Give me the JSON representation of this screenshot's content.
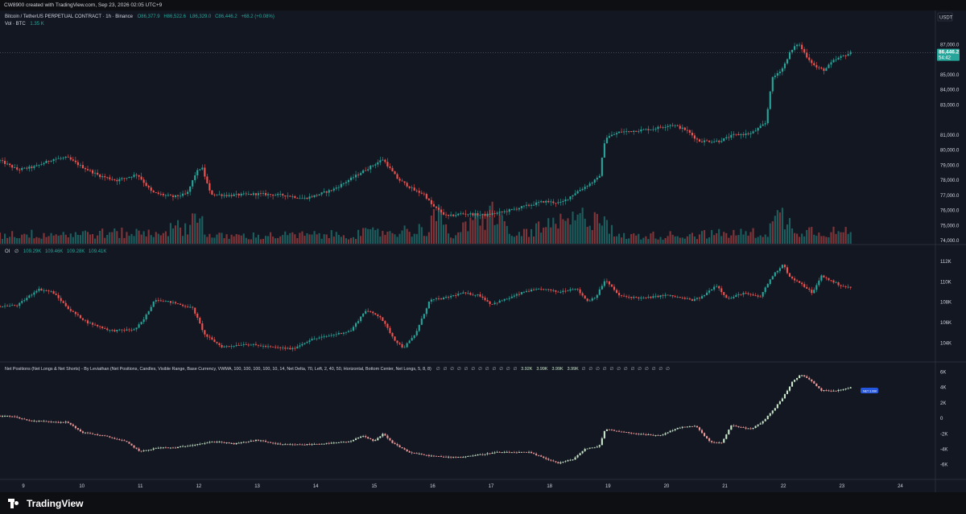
{
  "header": {
    "created": "CW8900 created with TradingView.com, Sep 23, 2026 02:05 UTC+9"
  },
  "legend": {
    "symbol": "Bitcoin / TetherUS PERPETUAL CONTRACT · 1h · Binance",
    "o": "O86,377.9",
    "h": "H86,522.6",
    "l": "L86,329.0",
    "c": "C86,446.2",
    "chg": "+68.2 (+0.08%)",
    "vol_label": "Vol · BTC",
    "vol_value": "1.35 K"
  },
  "oi_legend": {
    "label": "OI",
    "values": [
      "109.29K",
      "109.46K",
      "109.28K",
      "109.41K"
    ]
  },
  "np_legend": {
    "title": "Net Positions (Net Longs & Net Shorts) - By Leviathan (Net Positions, Candles, Visible Range, Base Currency, VWMA, 100, 100, 100, 100, 10, 14, Net Delta, 70, Left, 2, 40, 50, Horizontal, Bottom Center, Net Longs, 5, 8, 8)",
    "values": [
      "3.92K",
      "3.99K",
      "3.99K",
      "3.99K"
    ],
    "null_symbol": "∅"
  },
  "price_axis": {
    "currency": "USDT",
    "ticks": [
      "87,000.0",
      "85,000.0",
      "84,000.0",
      "83,000.0",
      "81,000.0",
      "80,000.0",
      "79,000.0",
      "78,000.0",
      "77,000.0",
      "76,000.0",
      "75,000.0",
      "74,000.0"
    ],
    "last_price": "86,446.2",
    "countdown": "54:42"
  },
  "oi_axis": {
    "ticks": [
      "112K",
      "110K",
      "108K",
      "106K",
      "104K"
    ]
  },
  "np_axis": {
    "ticks": [
      "6K",
      "4K",
      "2K",
      "0",
      "-2K",
      "-4K",
      "-6K"
    ],
    "bubble": "NET 3.99K"
  },
  "time_axis": {
    "labels": [
      "9",
      "10",
      "11",
      "12",
      "13",
      "14",
      "15",
      "16",
      "17",
      "18",
      "19",
      "20",
      "21",
      "22",
      "23",
      "24"
    ]
  },
  "footer": {
    "brand": "TradingView"
  },
  "colors": {
    "up": "#26a69a",
    "down": "#ef5350",
    "np_up": "#c8e6c9",
    "np_down": "#ef9a9a",
    "bg": "#131722",
    "text": "#d1d4dc",
    "badge": "#26a69a"
  },
  "chart_data": {
    "type": "candlestick",
    "timeframe": "1h",
    "price_anchors": [
      [
        8.6,
        79300
      ],
      [
        8.9,
        78700
      ],
      [
        9.2,
        78900
      ],
      [
        9.5,
        79400
      ],
      [
        9.75,
        79500
      ],
      [
        10.0,
        78900
      ],
      [
        10.3,
        78300
      ],
      [
        10.6,
        78000
      ],
      [
        10.95,
        78400
      ],
      [
        11.2,
        77200
      ],
      [
        11.55,
        76900
      ],
      [
        11.8,
        77100
      ],
      [
        11.95,
        78500
      ],
      [
        12.05,
        78900
      ],
      [
        12.2,
        77100
      ],
      [
        12.5,
        77000
      ],
      [
        13.0,
        77100
      ],
      [
        13.5,
        77000
      ],
      [
        13.8,
        76800
      ],
      [
        14.0,
        77000
      ],
      [
        14.3,
        77400
      ],
      [
        14.6,
        78100
      ],
      [
        14.85,
        78700
      ],
      [
        15.15,
        79400
      ],
      [
        15.4,
        78100
      ],
      [
        15.7,
        77300
      ],
      [
        15.85,
        77100
      ],
      [
        16.0,
        76300
      ],
      [
        16.25,
        75600
      ],
      [
        16.5,
        75800
      ],
      [
        16.9,
        75700
      ],
      [
        17.2,
        75900
      ],
      [
        17.6,
        76300
      ],
      [
        17.9,
        76600
      ],
      [
        18.2,
        76500
      ],
      [
        18.45,
        77200
      ],
      [
        18.7,
        77800
      ],
      [
        18.85,
        78200
      ],
      [
        18.95,
        80800
      ],
      [
        19.2,
        81200
      ],
      [
        19.5,
        81300
      ],
      [
        19.75,
        81400
      ],
      [
        20.1,
        81700
      ],
      [
        20.35,
        81300
      ],
      [
        20.55,
        80600
      ],
      [
        20.9,
        80600
      ],
      [
        21.15,
        81000
      ],
      [
        21.45,
        81100
      ],
      [
        21.7,
        81800
      ],
      [
        21.8,
        84700
      ],
      [
        22.0,
        85500
      ],
      [
        22.1,
        86400
      ],
      [
        22.25,
        87100
      ],
      [
        22.4,
        86200
      ],
      [
        22.55,
        85500
      ],
      [
        22.7,
        85300
      ],
      [
        22.85,
        85900
      ],
      [
        23.0,
        86200
      ],
      [
        23.15,
        86446
      ]
    ],
    "oi_anchors": [
      [
        8.6,
        107.6
      ],
      [
        8.9,
        107.7
      ],
      [
        9.25,
        109.3
      ],
      [
        9.5,
        109.0
      ],
      [
        9.8,
        107.2
      ],
      [
        10.1,
        106.0
      ],
      [
        10.5,
        105.2
      ],
      [
        10.9,
        105.3
      ],
      [
        11.05,
        106.2
      ],
      [
        11.25,
        108.3
      ],
      [
        11.6,
        107.9
      ],
      [
        11.9,
        107.4
      ],
      [
        12.1,
        104.8
      ],
      [
        12.4,
        103.6
      ],
      [
        12.8,
        103.9
      ],
      [
        13.2,
        103.6
      ],
      [
        13.6,
        103.4
      ],
      [
        13.9,
        104.3
      ],
      [
        14.3,
        104.8
      ],
      [
        14.6,
        105.2
      ],
      [
        14.85,
        107.2
      ],
      [
        15.1,
        106.6
      ],
      [
        15.35,
        104.3
      ],
      [
        15.5,
        103.5
      ],
      [
        15.7,
        104.8
      ],
      [
        15.95,
        108.2
      ],
      [
        16.2,
        108.4
      ],
      [
        16.5,
        108.9
      ],
      [
        16.8,
        108.7
      ],
      [
        17.0,
        107.8
      ],
      [
        17.3,
        108.4
      ],
      [
        17.6,
        109.1
      ],
      [
        17.9,
        109.3
      ],
      [
        18.15,
        109.0
      ],
      [
        18.45,
        109.4
      ],
      [
        18.65,
        108.1
      ],
      [
        18.8,
        108.6
      ],
      [
        18.95,
        110.2
      ],
      [
        19.2,
        108.6
      ],
      [
        19.6,
        108.4
      ],
      [
        20.0,
        108.7
      ],
      [
        20.45,
        108.2
      ],
      [
        20.6,
        108.5
      ],
      [
        20.85,
        109.7
      ],
      [
        21.05,
        108.3
      ],
      [
        21.3,
        108.9
      ],
      [
        21.6,
        108.5
      ],
      [
        21.8,
        110.5
      ],
      [
        22.0,
        111.8
      ],
      [
        22.1,
        110.5
      ],
      [
        22.35,
        109.6
      ],
      [
        22.5,
        108.9
      ],
      [
        22.65,
        110.6
      ],
      [
        22.85,
        110.0
      ],
      [
        23.0,
        109.6
      ],
      [
        23.15,
        109.41
      ]
    ],
    "np_anchors": [
      [
        8.6,
        0.3
      ],
      [
        8.8,
        0.3
      ],
      [
        9.1,
        -0.3
      ],
      [
        9.4,
        -0.4
      ],
      [
        9.75,
        -0.5
      ],
      [
        10.0,
        -1.8
      ],
      [
        10.4,
        -2.3
      ],
      [
        10.75,
        -3.0
      ],
      [
        11.0,
        -4.3
      ],
      [
        11.3,
        -3.8
      ],
      [
        11.6,
        -3.8
      ],
      [
        12.0,
        -3.3
      ],
      [
        12.3,
        -3.0
      ],
      [
        12.6,
        -3.3
      ],
      [
        13.0,
        -2.8
      ],
      [
        13.4,
        -3.4
      ],
      [
        13.8,
        -3.4
      ],
      [
        14.3,
        -3.2
      ],
      [
        14.6,
        -3.0
      ],
      [
        14.8,
        -2.2
      ],
      [
        15.0,
        -3.0
      ],
      [
        15.15,
        -2.0
      ],
      [
        15.3,
        -3.1
      ],
      [
        15.6,
        -4.4
      ],
      [
        15.9,
        -4.8
      ],
      [
        16.2,
        -5.0
      ],
      [
        16.5,
        -5.0
      ],
      [
        16.8,
        -4.7
      ],
      [
        17.1,
        -4.4
      ],
      [
        17.4,
        -4.4
      ],
      [
        17.65,
        -4.4
      ],
      [
        17.9,
        -5.1
      ],
      [
        18.15,
        -5.8
      ],
      [
        18.4,
        -5.3
      ],
      [
        18.6,
        -4.0
      ],
      [
        18.85,
        -3.6
      ],
      [
        18.95,
        -1.4
      ],
      [
        19.3,
        -1.8
      ],
      [
        19.6,
        -2.1
      ],
      [
        19.9,
        -2.2
      ],
      [
        20.2,
        -1.2
      ],
      [
        20.5,
        -1.0
      ],
      [
        20.75,
        -3.1
      ],
      [
        20.95,
        -3.2
      ],
      [
        21.1,
        -0.9
      ],
      [
        21.45,
        -1.4
      ],
      [
        21.65,
        -0.4
      ],
      [
        21.85,
        1.3
      ],
      [
        22.0,
        2.8
      ],
      [
        22.15,
        4.7
      ],
      [
        22.3,
        5.7
      ],
      [
        22.45,
        5.0
      ],
      [
        22.65,
        3.6
      ],
      [
        22.9,
        3.6
      ],
      [
        23.15,
        3.99
      ]
    ],
    "volume_anchors": [
      [
        8.6,
        0.25
      ],
      [
        11.2,
        0.3
      ],
      [
        11.85,
        0.5
      ],
      [
        12.0,
        1.0
      ],
      [
        12.15,
        0.2
      ],
      [
        14.5,
        0.25
      ],
      [
        15.9,
        0.4
      ],
      [
        16.05,
        0.9
      ],
      [
        16.3,
        0.2
      ],
      [
        17.15,
        0.95
      ],
      [
        17.3,
        0.2
      ],
      [
        18.95,
        0.85
      ],
      [
        19.1,
        0.2
      ],
      [
        21.7,
        0.3
      ],
      [
        21.95,
        0.8
      ],
      [
        22.2,
        0.4
      ],
      [
        23.15,
        0.3
      ]
    ],
    "price_ylim": [
      73800,
      88400
    ],
    "oi_ylim": [
      102.2,
      113.6
    ],
    "np_ylim": [
      -7.8,
      7.2
    ],
    "xlim": [
      8.6,
      24.6
    ]
  }
}
